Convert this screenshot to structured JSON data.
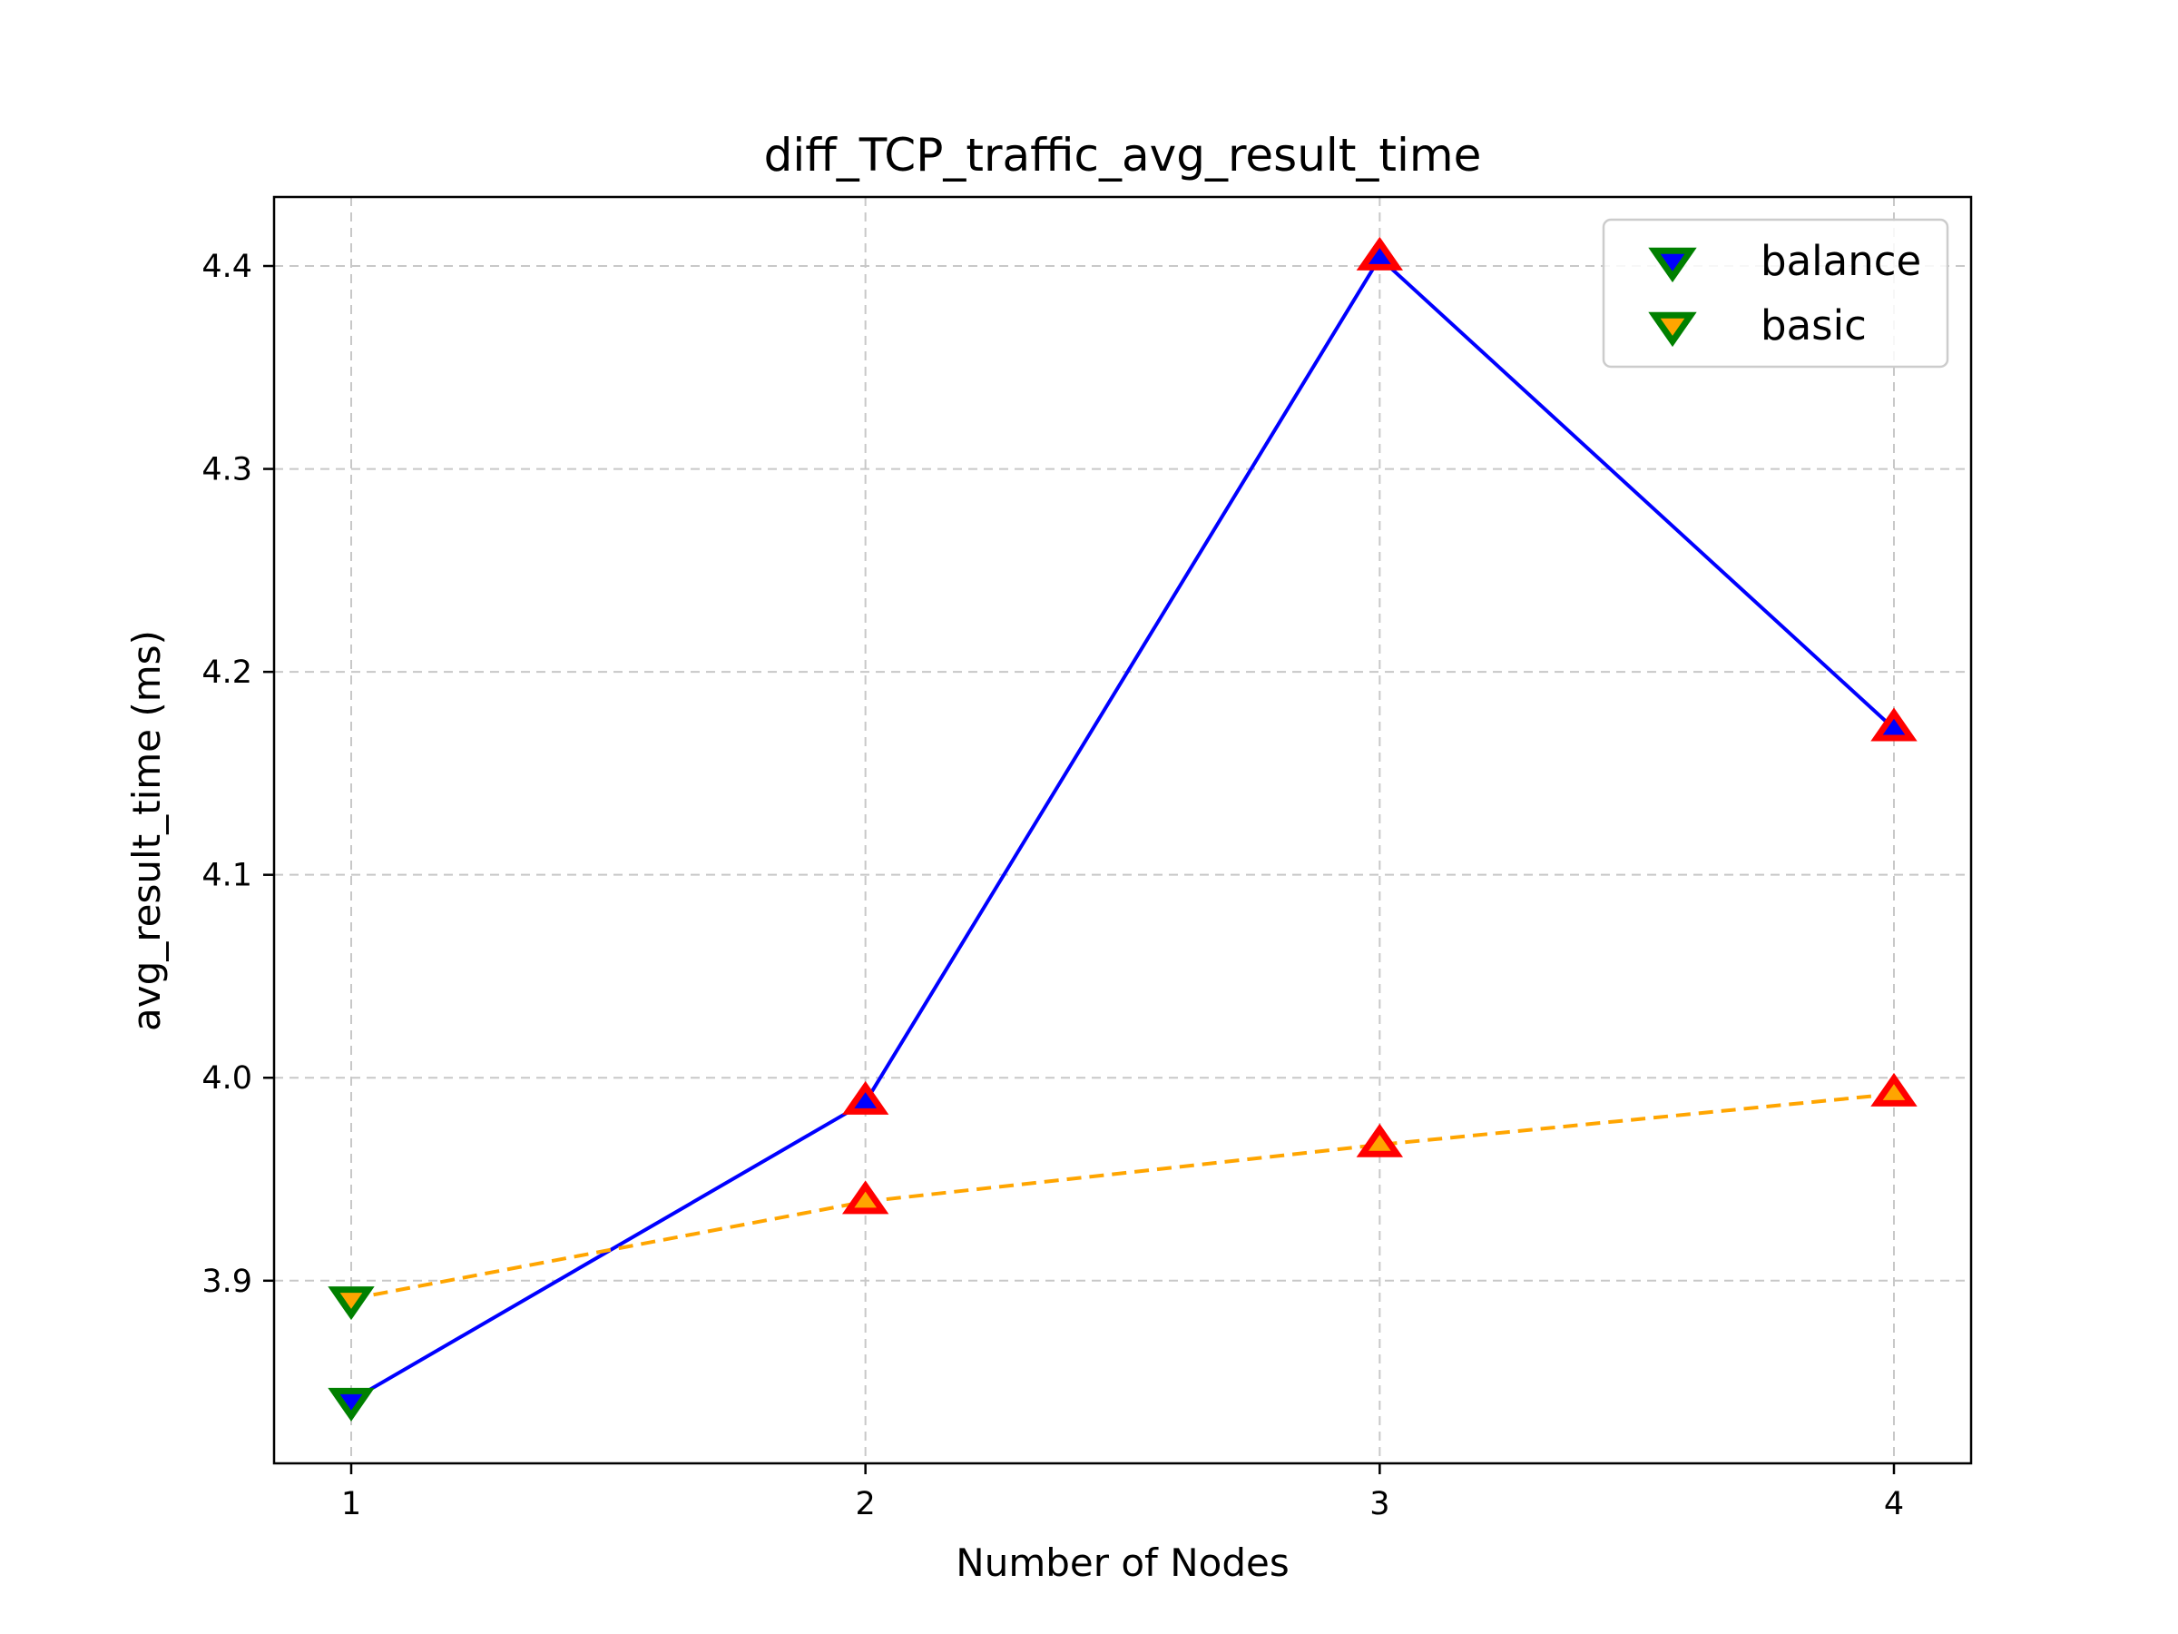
{
  "chart_data": {
    "type": "line",
    "title": "diff_TCP_traffic_avg_result_time",
    "xlabel": "Number of Nodes",
    "ylabel": "avg_result_time (ms)",
    "x": [
      1,
      2,
      3,
      4
    ],
    "xlim": [
      0.85,
      4.15
    ],
    "ylim": [
      3.81,
      4.434
    ],
    "xticks": [
      "1",
      "2",
      "3",
      "4"
    ],
    "yticks": [
      "3.9",
      "4.0",
      "4.1",
      "4.2",
      "4.3",
      "4.4"
    ],
    "ytick_values": [
      3.9,
      4.0,
      4.1,
      4.2,
      4.3,
      4.4
    ],
    "grid": true,
    "legend_position": "top-right",
    "series": [
      {
        "name": "balance",
        "values": [
          3.841,
          3.988,
          4.404,
          4.172
        ],
        "line_color": "#0000ff",
        "line_style": "solid",
        "marker_fill": "#0000ff",
        "legend_marker_edge": "#008000",
        "min_marker_edge": "#008000",
        "max_marker_edge": "#ff0000"
      },
      {
        "name": "basic",
        "values": [
          3.891,
          3.939,
          3.967,
          3.992
        ],
        "line_color": "#ffa500",
        "line_style": "dashed",
        "marker_fill": "#ffa500",
        "legend_marker_edge": "#008000",
        "min_marker_edge": "#008000",
        "max_marker_edge": "#ff0000"
      }
    ]
  }
}
